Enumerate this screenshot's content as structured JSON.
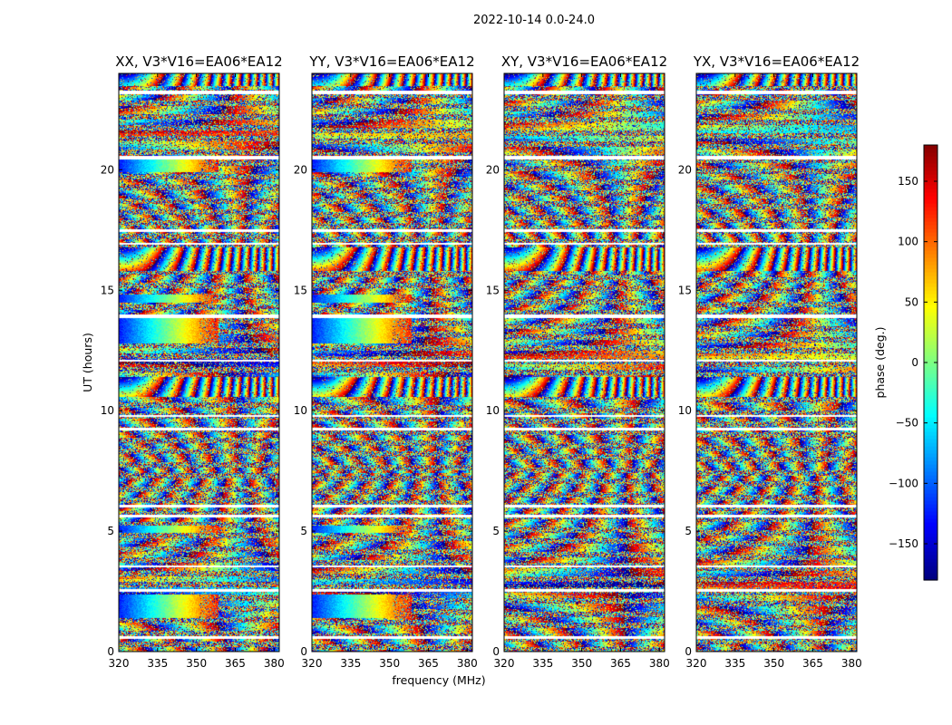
{
  "figure": {
    "suptitle": "2022-10-14 0.0-24.0"
  },
  "chart_data": {
    "type": "heatmap",
    "title": "2022-10-14 0.0-24.0",
    "xlabel": "frequency (MHz)",
    "ylabel": "UT (hours)",
    "xlim": [
      320,
      382
    ],
    "ylim": [
      0,
      24
    ],
    "xticks": [
      320,
      335,
      350,
      365,
      380
    ],
    "yticks": [
      0,
      5,
      10,
      15,
      20
    ],
    "panels": [
      {
        "id": "xx",
        "title": "XX, V3*V16=EA06*EA12",
        "show_ylabel": true
      },
      {
        "id": "yy",
        "title": "YY, V3*V16=EA06*EA12",
        "show_ylabel": false
      },
      {
        "id": "xy",
        "title": "XY, V3*V16=EA06*EA12",
        "show_ylabel": false
      },
      {
        "id": "yx",
        "title": "YX, V3*V16=EA06*EA12",
        "show_ylabel": false
      }
    ],
    "colorbar": {
      "label": "phase (deg.)",
      "range": [
        -180,
        180
      ],
      "ticks": [
        150,
        100,
        50,
        0,
        -50,
        -100,
        -150
      ],
      "colormap": "jet"
    },
    "blank_time_bands_hours": [
      [
        23.15,
        23.3
      ],
      [
        20.45,
        20.6
      ],
      [
        17.45,
        17.55
      ],
      [
        16.9,
        17.0
      ],
      [
        13.85,
        14.0
      ],
      [
        12.05,
        12.15
      ],
      [
        9.75,
        9.85
      ],
      [
        9.2,
        9.3
      ],
      [
        6.0,
        6.1
      ],
      [
        5.6,
        5.7
      ],
      [
        3.5,
        3.6
      ],
      [
        2.5,
        2.6
      ],
      [
        0.55,
        0.65
      ]
    ],
    "phase_gradient_bands_hours": [
      {
        "from": 19.9,
        "to": 20.45,
        "panels": [
          "xx",
          "yy"
        ]
      },
      {
        "from": 14.5,
        "to": 14.85,
        "panels": [
          "xx",
          "yy"
        ]
      },
      {
        "from": 12.8,
        "to": 13.85,
        "panels": [
          "xx",
          "yy"
        ]
      },
      {
        "from": 4.95,
        "to": 5.25,
        "panels": [
          "xx",
          "yy"
        ]
      },
      {
        "from": 1.4,
        "to": 2.4,
        "panels": [
          "xx",
          "yy"
        ]
      }
    ],
    "fringe_bands_hours": [
      {
        "from": 10.6,
        "to": 11.4
      },
      {
        "from": 23.5,
        "to": 24.0
      },
      {
        "from": 15.8,
        "to": 16.8
      }
    ]
  }
}
